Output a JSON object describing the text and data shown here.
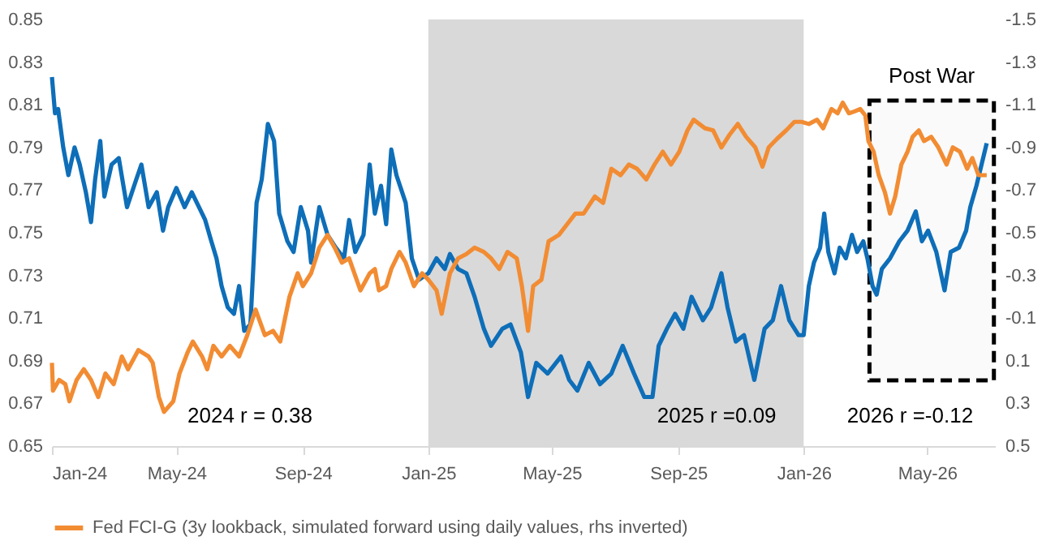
{
  "chart_data": {
    "type": "line",
    "series": [
      {
        "color": "#0e6eb8",
        "x": [
          "2024-01-01",
          "2024-01-04",
          "2024-01-07",
          "2024-01-12",
          "2024-01-17",
          "2024-01-23",
          "2024-01-28",
          "2024-02-03",
          "2024-02-08",
          "2024-02-12",
          "2024-02-17",
          "2024-02-21",
          "2024-02-28",
          "2024-03-06",
          "2024-03-14",
          "2024-03-23",
          "2024-03-28",
          "2024-04-04",
          "2024-04-12",
          "2024-04-18",
          "2024-04-23",
          "2024-05-01",
          "2024-05-09",
          "2024-05-16",
          "2024-05-23",
          "2024-05-29",
          "2024-06-04",
          "2024-06-09",
          "2024-06-14",
          "2024-06-20",
          "2024-06-26",
          "2024-07-01",
          "2024-07-06",
          "2024-07-12",
          "2024-07-18",
          "2024-07-23",
          "2024-07-29",
          "2024-08-04",
          "2024-08-09",
          "2024-08-17",
          "2024-08-23",
          "2024-08-30",
          "2024-09-06",
          "2024-09-09",
          "2024-09-17",
          "2024-09-25",
          "2024-10-03",
          "2024-10-11",
          "2024-10-16",
          "2024-10-22",
          "2024-10-30",
          "2024-11-05",
          "2024-11-10",
          "2024-11-16",
          "2024-11-21",
          "2024-11-26",
          "2024-12-01",
          "2024-12-10",
          "2024-12-16",
          "2024-12-23",
          "2025-01-01",
          "2025-01-09",
          "2025-01-17",
          "2025-01-22",
          "2025-01-30",
          "2025-02-07",
          "2025-02-15",
          "2025-02-24",
          "2025-03-03",
          "2025-03-14",
          "2025-03-22",
          "2025-04-01",
          "2025-04-08",
          "2025-04-16",
          "2025-04-27",
          "2025-05-10",
          "2025-05-18",
          "2025-05-26",
          "2025-06-06",
          "2025-06-17",
          "2025-06-28",
          "2025-07-09",
          "2025-07-20",
          "2025-07-30",
          "2025-08-07",
          "2025-08-13",
          "2025-08-21",
          "2025-08-29",
          "2025-09-06",
          "2025-09-14",
          "2025-09-25",
          "2025-10-03",
          "2025-10-13",
          "2025-10-19",
          "2025-10-27",
          "2025-11-04",
          "2025-11-14",
          "2025-11-24",
          "2025-12-02",
          "2025-12-10",
          "2025-12-18",
          "2025-12-27",
          "2026-01-01",
          "2026-01-06",
          "2026-01-11",
          "2026-01-17",
          "2026-01-21",
          "2026-01-25",
          "2026-01-31",
          "2026-02-05",
          "2026-02-11",
          "2026-02-17",
          "2026-02-22",
          "2026-02-28",
          "2026-03-04",
          "2026-03-09",
          "2026-03-13",
          "2026-03-18",
          "2026-03-26",
          "2026-04-04",
          "2026-04-12",
          "2026-04-20",
          "2026-04-26",
          "2026-05-02",
          "2026-05-10",
          "2026-05-18",
          "2026-05-24",
          "2026-06-01",
          "2026-06-08",
          "2026-06-12",
          "2026-06-18",
          "2026-06-23",
          "2026-06-28"
        ],
        "values": [
          0.823,
          0.806,
          0.808,
          0.79,
          0.777,
          0.79,
          0.782,
          0.769,
          0.755,
          0.775,
          0.793,
          0.767,
          0.782,
          0.785,
          0.762,
          0.775,
          0.782,
          0.762,
          0.769,
          0.751,
          0.762,
          0.771,
          0.762,
          0.769,
          0.762,
          0.756,
          0.746,
          0.738,
          0.725,
          0.715,
          0.712,
          0.725,
          0.704,
          0.707,
          0.764,
          0.775,
          0.801,
          0.793,
          0.759,
          0.746,
          0.741,
          0.762,
          0.751,
          0.736,
          0.762,
          0.749,
          0.743,
          0.738,
          0.756,
          0.741,
          0.749,
          0.782,
          0.759,
          0.772,
          0.754,
          0.789,
          0.777,
          0.764,
          0.738,
          0.728,
          0.731,
          0.738,
          0.733,
          0.74,
          0.733,
          0.731,
          0.72,
          0.705,
          0.697,
          0.705,
          0.707,
          0.694,
          0.673,
          0.689,
          0.684,
          0.692,
          0.681,
          0.676,
          0.689,
          0.679,
          0.684,
          0.697,
          0.684,
          0.673,
          0.673,
          0.697,
          0.705,
          0.712,
          0.705,
          0.72,
          0.709,
          0.715,
          0.731,
          0.715,
          0.699,
          0.702,
          0.681,
          0.705,
          0.709,
          0.725,
          0.709,
          0.702,
          0.702,
          0.725,
          0.736,
          0.743,
          0.759,
          0.741,
          0.731,
          0.743,
          0.738,
          0.749,
          0.741,
          0.746,
          0.738,
          0.725,
          0.721,
          0.733,
          0.738,
          0.746,
          0.751,
          0.76,
          0.746,
          0.751,
          0.741,
          0.723,
          0.741,
          0.743,
          0.751,
          0.762,
          0.772,
          0.782,
          0.792
        ]
      },
      {
        "name": "Fed FCI-G (3y lookback, simulated forward using daily values, rhs inverted)",
        "color": "#f28c33",
        "axis": "y2",
        "x": [
          "2024-01-01",
          "2024-01-02",
          "2024-01-08",
          "2024-01-14",
          "2024-01-18",
          "2024-01-25",
          "2024-02-01",
          "2024-02-08",
          "2024-02-15",
          "2024-02-22",
          "2024-03-01",
          "2024-03-09",
          "2024-03-15",
          "2024-03-25",
          "2024-04-04",
          "2024-04-08",
          "2024-04-14",
          "2024-04-19",
          "2024-04-28",
          "2024-05-04",
          "2024-05-12",
          "2024-05-17",
          "2024-05-26",
          "2024-05-31",
          "2024-06-06",
          "2024-06-14",
          "2024-06-22",
          "2024-07-01",
          "2024-07-09",
          "2024-07-17",
          "2024-07-26",
          "2024-08-03",
          "2024-08-10",
          "2024-08-19",
          "2024-08-27",
          "2024-09-01",
          "2024-09-09",
          "2024-09-17",
          "2024-09-25",
          "2024-10-02",
          "2024-10-09",
          "2024-10-16",
          "2024-10-27",
          "2024-11-05",
          "2024-11-10",
          "2024-11-14",
          "2024-11-21",
          "2024-11-26",
          "2024-12-04",
          "2024-12-10",
          "2024-12-18",
          "2024-12-26",
          "2025-01-01",
          "2025-01-09",
          "2025-01-14",
          "2025-01-22",
          "2025-01-30",
          "2025-02-07",
          "2025-02-15",
          "2025-02-24",
          "2025-03-03",
          "2025-03-11",
          "2025-03-19",
          "2025-03-28",
          "2025-04-02",
          "2025-04-08",
          "2025-04-13",
          "2025-04-21",
          "2025-04-28",
          "2025-05-08",
          "2025-05-16",
          "2025-05-24",
          "2025-06-01",
          "2025-06-12",
          "2025-06-20",
          "2025-06-28",
          "2025-07-07",
          "2025-07-15",
          "2025-07-23",
          "2025-08-01",
          "2025-08-09",
          "2025-08-17",
          "2025-08-25",
          "2025-09-02",
          "2025-09-10",
          "2025-09-16",
          "2025-09-27",
          "2025-10-05",
          "2025-10-13",
          "2025-10-21",
          "2025-10-29",
          "2025-11-06",
          "2025-11-15",
          "2025-11-22",
          "2025-11-28",
          "2025-12-06",
          "2025-12-15",
          "2025-12-23",
          "2025-12-30",
          "2026-01-06",
          "2026-01-14",
          "2026-01-20",
          "2026-01-28",
          "2026-02-03",
          "2026-02-08",
          "2026-02-14",
          "2026-02-20",
          "2026-02-25",
          "2026-03-02",
          "2026-03-05",
          "2026-03-10",
          "2026-03-15",
          "2026-03-21",
          "2026-03-26",
          "2026-03-31",
          "2026-04-06",
          "2026-04-12",
          "2026-04-17",
          "2026-04-23",
          "2026-04-28",
          "2026-05-05",
          "2026-05-12",
          "2026-05-20",
          "2026-05-26",
          "2026-06-02",
          "2026-06-09",
          "2026-06-14",
          "2026-06-20",
          "2026-06-28"
        ],
        "values": [
          0.11,
          0.24,
          0.19,
          0.21,
          0.29,
          0.19,
          0.14,
          0.19,
          0.27,
          0.16,
          0.21,
          0.08,
          0.14,
          0.05,
          0.08,
          0.11,
          0.27,
          0.34,
          0.29,
          0.16,
          0.06,
          0.01,
          0.08,
          0.14,
          0.03,
          0.08,
          0.03,
          0.08,
          -0.02,
          -0.14,
          -0.02,
          -0.04,
          0.01,
          -0.2,
          -0.31,
          -0.25,
          -0.31,
          -0.43,
          -0.49,
          -0.43,
          -0.36,
          -0.38,
          -0.23,
          -0.31,
          -0.33,
          -0.23,
          -0.25,
          -0.33,
          -0.41,
          -0.36,
          -0.25,
          -0.31,
          -0.28,
          -0.23,
          -0.12,
          -0.31,
          -0.38,
          -0.4,
          -0.43,
          -0.41,
          -0.38,
          -0.33,
          -0.41,
          -0.38,
          -0.25,
          -0.04,
          -0.25,
          -0.28,
          -0.46,
          -0.49,
          -0.54,
          -0.59,
          -0.59,
          -0.67,
          -0.64,
          -0.8,
          -0.77,
          -0.82,
          -0.8,
          -0.75,
          -0.82,
          -0.88,
          -0.82,
          -0.88,
          -0.98,
          -1.03,
          -0.99,
          -0.98,
          -0.9,
          -0.96,
          -1.01,
          -0.95,
          -0.9,
          -0.81,
          -0.9,
          -0.94,
          -0.98,
          -1.02,
          -1.02,
          -1.01,
          -1.03,
          -0.99,
          -1.08,
          -1.06,
          -1.11,
          -1.06,
          -1.07,
          -1.08,
          -1.05,
          -0.93,
          -0.88,
          -0.77,
          -0.69,
          -0.59,
          -0.67,
          -0.82,
          -0.88,
          -0.95,
          -0.98,
          -0.93,
          -0.95,
          -0.9,
          -0.82,
          -0.9,
          -0.88,
          -0.8,
          -0.85,
          -0.77,
          -0.77
        ]
      }
    ],
    "xlim": [
      "2024-01-01",
      "2026-07-06"
    ],
    "xticks": [
      {
        "value": "2024-01-01",
        "label": "Jan-24"
      },
      {
        "value": "2024-05-01",
        "label": "May-24"
      },
      {
        "value": "2024-09-01",
        "label": "Sep-24"
      },
      {
        "value": "2025-01-01",
        "label": "Jan-25"
      },
      {
        "value": "2025-05-01",
        "label": "May-25"
      },
      {
        "value": "2025-09-01",
        "label": "Sep-25"
      },
      {
        "value": "2026-01-01",
        "label": "Jan-26"
      },
      {
        "value": "2026-05-01",
        "label": "May-26"
      }
    ],
    "ylim": [
      0.65,
      0.85
    ],
    "yticks": [
      0.65,
      0.67,
      0.69,
      0.71,
      0.73,
      0.75,
      0.77,
      0.79,
      0.81,
      0.83,
      0.85
    ],
    "y2lim": [
      0.5,
      -1.5
    ],
    "y2ticks": [
      0.5,
      0.3,
      0.1,
      -0.1,
      -0.3,
      -0.5,
      -0.7,
      -0.9,
      -1.1,
      -1.3,
      -1.5
    ],
    "bands": [
      {
        "axis": "x",
        "from": "2025-01-01",
        "to": "2026-01-01",
        "color": "#d9d9d9"
      },
      {
        "axis": "x",
        "from": "2026-03-06",
        "to": "2026-07-05",
        "label": "Post War",
        "color": "#000000"
      }
    ],
    "annotations": [
      "2024 r = 0.38",
      "2025 r =0.09",
      "2026 r =-0.12"
    ],
    "legend": "bottom",
    "grid": false
  }
}
